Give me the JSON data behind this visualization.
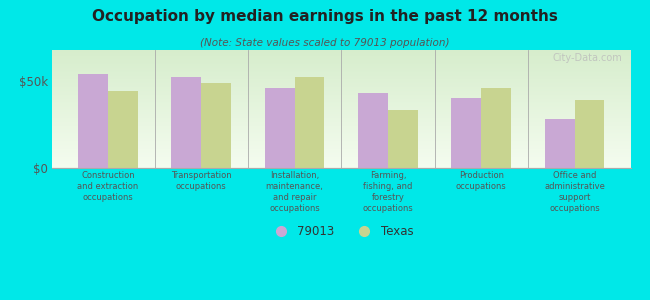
{
  "title": "Occupation by median earnings in the past 12 months",
  "subtitle": "(Note: State values scaled to 79013 population)",
  "categories": [
    "Construction\nand extraction\noccupations",
    "Transportation\noccupations",
    "Installation,\nmaintenance,\nand repair\noccupations",
    "Farming,\nfishing, and\nforestry\noccupations",
    "Production\noccupations",
    "Office and\nadministrative\nsupport\noccupations"
  ],
  "values_79013": [
    54000,
    52500,
    46000,
    43000,
    40000,
    28000
  ],
  "values_texas": [
    44000,
    49000,
    52000,
    33000,
    46000,
    39000
  ],
  "color_79013": "#c9a8d4",
  "color_texas": "#c8d490",
  "background_fig": "#00e8e8",
  "background_plot_top": "#d8edcc",
  "background_plot_bottom": "#f5fbf0",
  "yticks": [
    0,
    50000
  ],
  "ytick_labels": [
    "$0",
    "$50k"
  ],
  "ylim": [
    0,
    68000
  ],
  "legend_label_79013": "79013",
  "legend_label_texas": "Texas",
  "watermark": "City-Data.com"
}
